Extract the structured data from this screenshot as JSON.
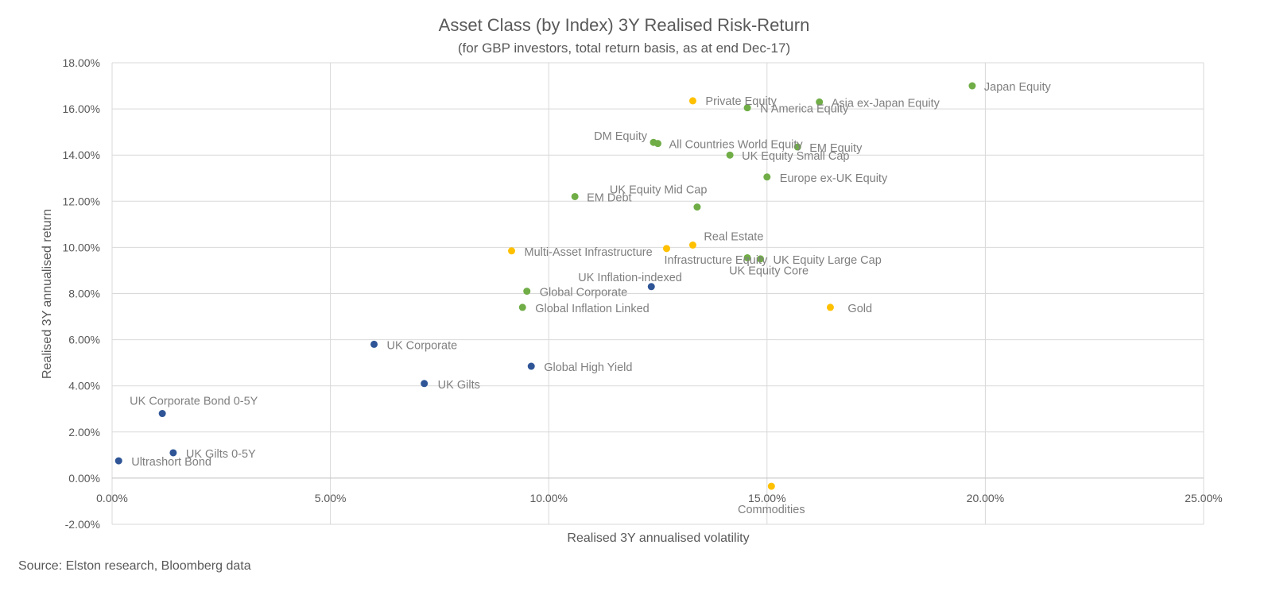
{
  "chart_data": {
    "type": "scatter",
    "title": "Asset Class (by Index) 3Y Realised Risk-Return",
    "subtitle": "(for GBP investors, total return basis, as at end Dec-17)",
    "xlabel": "Realised  3Y annualised volatility",
    "ylabel": "Realised 3Y annualised return",
    "xlim": [
      0,
      25
    ],
    "ylim": [
      -2,
      18
    ],
    "x_ticks": [
      "0.00%",
      "5.00%",
      "10.00%",
      "15.00%",
      "20.00%",
      "25.00%"
    ],
    "y_ticks": [
      "-2.00%",
      "0.00%",
      "2.00%",
      "4.00%",
      "6.00%",
      "8.00%",
      "10.00%",
      "12.00%",
      "14.00%",
      "16.00%",
      "18.00%"
    ],
    "grid": true,
    "legend": "none",
    "colors": {
      "bond": "#2F5597",
      "equity": "#70AD47",
      "alternative": "#FFC000"
    },
    "points": [
      {
        "label": "Japan Equity",
        "x": 19.7,
        "y": 17.0,
        "group": "equity"
      },
      {
        "label": "Asia ex-Japan Equity",
        "x": 16.2,
        "y": 16.3,
        "group": "equity"
      },
      {
        "label": "N America Equity",
        "x": 14.55,
        "y": 16.05,
        "group": "equity"
      },
      {
        "label": "Private Equity",
        "x": 13.3,
        "y": 16.35,
        "group": "alternative"
      },
      {
        "label": "DM Equity",
        "x": 12.4,
        "y": 14.55,
        "group": "equity"
      },
      {
        "label": "All Countries World Equity",
        "x": 12.5,
        "y": 14.5,
        "group": "equity"
      },
      {
        "label": "EM Equity",
        "x": 15.7,
        "y": 14.35,
        "group": "equity"
      },
      {
        "label": "UK Equity Small Cap",
        "x": 14.15,
        "y": 14.0,
        "group": "equity"
      },
      {
        "label": "Europe ex-UK Equity",
        "x": 15.0,
        "y": 13.05,
        "group": "equity"
      },
      {
        "label": "EM Debt",
        "x": 10.6,
        "y": 12.2,
        "group": "equity"
      },
      {
        "label": "UK Equity Mid Cap",
        "x": 13.4,
        "y": 11.75,
        "group": "equity"
      },
      {
        "label": "Real Estate",
        "x": 13.3,
        "y": 10.1,
        "group": "alternative"
      },
      {
        "label": "Multi-Asset Infrastructure",
        "x": 9.15,
        "y": 9.85,
        "group": "alternative"
      },
      {
        "label": "Infrastructure Equity",
        "x": 12.7,
        "y": 9.95,
        "group": "alternative"
      },
      {
        "label": "UK Equity Large Cap",
        "x": 14.85,
        "y": 9.5,
        "group": "equity"
      },
      {
        "label": "UK Equity Core",
        "x": 14.55,
        "y": 9.55,
        "group": "equity"
      },
      {
        "label": "UK Inflation-indexed",
        "x": 12.35,
        "y": 8.3,
        "group": "bond"
      },
      {
        "label": "Global Corporate",
        "x": 9.5,
        "y": 8.1,
        "group": "equity"
      },
      {
        "label": "Global Inflation Linked",
        "x": 9.4,
        "y": 7.4,
        "group": "equity"
      },
      {
        "label": "Gold",
        "x": 16.45,
        "y": 7.4,
        "group": "alternative"
      },
      {
        "label": "UK Corporate",
        "x": 6.0,
        "y": 5.8,
        "group": "bond"
      },
      {
        "label": "Global High Yield",
        "x": 9.6,
        "y": 4.85,
        "group": "bond"
      },
      {
        "label": "UK Gilts",
        "x": 7.15,
        "y": 4.1,
        "group": "bond"
      },
      {
        "label": "UK Corporate Bond 0-5Y",
        "x": 1.15,
        "y": 2.8,
        "group": "bond"
      },
      {
        "label": "UK Gilts 0-5Y",
        "x": 1.4,
        "y": 1.1,
        "group": "bond"
      },
      {
        "label": "Ultrashort Bond",
        "x": 0.15,
        "y": 0.75,
        "group": "bond"
      },
      {
        "label": "Commodities",
        "x": 15.1,
        "y": -0.35,
        "group": "alternative"
      }
    ]
  },
  "source_note": "Source: Elston research, Bloomberg data"
}
